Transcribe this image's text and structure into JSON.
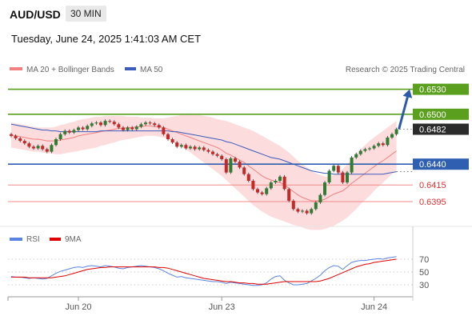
{
  "header": {
    "symbol": "AUD/USD",
    "timeframe": "30 MIN",
    "timestamp": "Tuesday, June 24, 2025 1:41:03 AM CET"
  },
  "legend": {
    "ma20": "MA 20 + Bollinger Bands",
    "ma50": "MA 50",
    "credit": "Research © 2025 Trading Central"
  },
  "rsi_legend": {
    "rsi": "RSI",
    "ma": "9MA"
  },
  "colors": {
    "candle_up": "#2e7d32",
    "candle_down": "#c62828",
    "resistance": "#5aa01e",
    "pivot": "#2e5fb0",
    "support": "#f08a8a",
    "bollinger_fill": "#fbd3d3",
    "ma20": "#f28080",
    "ma50": "#3b5bbd",
    "rsi": "#5b84e0",
    "rsi_ma": "#e00000",
    "arrow": "#2a5aa8"
  },
  "chart_data": [
    {
      "type": "candlestick",
      "title": "AUD/USD 30 MIN",
      "x_ticks": [
        "Jun 20",
        "Jun 23",
        "Jun 24"
      ],
      "ylim": [
        0.637,
        0.6545
      ],
      "levels": [
        {
          "value": 0.653,
          "label": "0.6530",
          "kind": "resistance"
        },
        {
          "value": 0.65,
          "label": "0.6500",
          "kind": "resistance"
        },
        {
          "value": 0.6482,
          "label": "0.6482",
          "kind": "last"
        },
        {
          "value": 0.644,
          "label": "0.6440",
          "kind": "pivot"
        },
        {
          "value": 0.6415,
          "label": "0.6415",
          "kind": "support"
        },
        {
          "value": 0.6395,
          "label": "0.6395",
          "kind": "support"
        }
      ],
      "close": [
        0.6474,
        0.6471,
        0.6468,
        0.6465,
        0.6461,
        0.6459,
        0.6462,
        0.6458,
        0.6455,
        0.6463,
        0.647,
        0.6476,
        0.648,
        0.6478,
        0.6481,
        0.6484,
        0.6482,
        0.6486,
        0.6489,
        0.649,
        0.6487,
        0.6492,
        0.6491,
        0.6488,
        0.6484,
        0.6481,
        0.6484,
        0.6482,
        0.6485,
        0.6488,
        0.649,
        0.6489,
        0.6487,
        0.6484,
        0.6476,
        0.647,
        0.6466,
        0.6461,
        0.6463,
        0.6459,
        0.6461,
        0.6458,
        0.646,
        0.6457,
        0.6455,
        0.6452,
        0.645,
        0.6446,
        0.643,
        0.6447,
        0.6443,
        0.6436,
        0.6428,
        0.642,
        0.641,
        0.6406,
        0.6404,
        0.6411,
        0.6418,
        0.642,
        0.6425,
        0.641,
        0.6396,
        0.6386,
        0.6383,
        0.6384,
        0.6381,
        0.6386,
        0.6394,
        0.6403,
        0.6418,
        0.6432,
        0.6438,
        0.643,
        0.6418,
        0.643,
        0.6448,
        0.6452,
        0.6456,
        0.6458,
        0.6459,
        0.6462,
        0.6465,
        0.6463,
        0.6472,
        0.6476,
        0.6482
      ],
      "ma20": [
        0.6475,
        0.6474,
        0.6473,
        0.6472,
        0.6471,
        0.647,
        0.647,
        0.6469,
        0.6468,
        0.6468,
        0.6468,
        0.6469,
        0.647,
        0.6471,
        0.6472,
        0.6474,
        0.6475,
        0.6476,
        0.6477,
        0.6478,
        0.6479,
        0.648,
        0.6481,
        0.6482,
        0.6483,
        0.6483,
        0.6484,
        0.6484,
        0.6485,
        0.6485,
        0.6486,
        0.6486,
        0.6485,
        0.6485,
        0.6484,
        0.6482,
        0.648,
        0.6478,
        0.6476,
        0.6474,
        0.6472,
        0.647,
        0.6468,
        0.6466,
        0.6464,
        0.6462,
        0.646,
        0.6457,
        0.6453,
        0.6451,
        0.6448,
        0.6445,
        0.6442,
        0.6438,
        0.6434,
        0.643,
        0.6426,
        0.6423,
        0.6421,
        0.6419,
        0.6418,
        0.6415,
        0.6411,
        0.6407,
        0.6403,
        0.64,
        0.6398,
        0.6396,
        0.6396,
        0.6396,
        0.6398,
        0.6401,
        0.6404,
        0.6406,
        0.6408,
        0.6412,
        0.6417,
        0.6421,
        0.6425,
        0.6429,
        0.6433,
        0.6437,
        0.6441,
        0.6444,
        0.6448,
        0.6452,
        0.6456
      ],
      "ma50": [
        0.6488,
        0.6487,
        0.6486,
        0.6485,
        0.6484,
        0.6483,
        0.6482,
        0.6481,
        0.6481,
        0.648,
        0.648,
        0.6479,
        0.6479,
        0.6479,
        0.6479,
        0.6479,
        0.6479,
        0.6479,
        0.6479,
        0.6479,
        0.648,
        0.648,
        0.648,
        0.648,
        0.648,
        0.648,
        0.648,
        0.648,
        0.648,
        0.648,
        0.648,
        0.648,
        0.648,
        0.648,
        0.648,
        0.648,
        0.6479,
        0.6479,
        0.6478,
        0.6477,
        0.6476,
        0.6475,
        0.6474,
        0.6473,
        0.6472,
        0.6471,
        0.647,
        0.6469,
        0.6467,
        0.6466,
        0.6464,
        0.6462,
        0.646,
        0.6458,
        0.6456,
        0.6454,
        0.6452,
        0.645,
        0.6448,
        0.6447,
        0.6446,
        0.6444,
        0.6442,
        0.644,
        0.6438,
        0.6436,
        0.6434,
        0.6432,
        0.6431,
        0.643,
        0.6429,
        0.6429,
        0.6428,
        0.6428,
        0.6428,
        0.6428,
        0.6428,
        0.6428,
        0.6428,
        0.6428,
        0.6428,
        0.6428,
        0.6428,
        0.6428,
        0.6429,
        0.643,
        0.6431
      ],
      "bb_upper": [
        0.649,
        0.6489,
        0.6488,
        0.6487,
        0.6486,
        0.6485,
        0.6484,
        0.6484,
        0.6484,
        0.6484,
        0.6485,
        0.6487,
        0.6488,
        0.649,
        0.6491,
        0.6493,
        0.6494,
        0.6495,
        0.6496,
        0.6497,
        0.6497,
        0.6498,
        0.6498,
        0.6498,
        0.6498,
        0.6498,
        0.6497,
        0.6497,
        0.6497,
        0.6496,
        0.6496,
        0.6496,
        0.6495,
        0.6495,
        0.6495,
        0.6496,
        0.6497,
        0.6498,
        0.6499,
        0.6499,
        0.6499,
        0.6499,
        0.6499,
        0.6498,
        0.6497,
        0.6496,
        0.6494,
        0.6493,
        0.6492,
        0.649,
        0.6488,
        0.6486,
        0.6484,
        0.6482,
        0.648,
        0.6477,
        0.6474,
        0.6471,
        0.6468,
        0.6465,
        0.6462,
        0.6458,
        0.6454,
        0.6449,
        0.6444,
        0.644,
        0.6436,
        0.6432,
        0.6429,
        0.6427,
        0.6425,
        0.6425,
        0.6427,
        0.643,
        0.6434,
        0.644,
        0.6446,
        0.6452,
        0.6458,
        0.6463,
        0.6468,
        0.6472,
        0.6476,
        0.648,
        0.6484,
        0.6488,
        0.6492
      ],
      "bb_lower": [
        0.646,
        0.6459,
        0.6458,
        0.6457,
        0.6456,
        0.6455,
        0.6455,
        0.6454,
        0.6453,
        0.6453,
        0.6452,
        0.6452,
        0.6453,
        0.6454,
        0.6455,
        0.6456,
        0.6457,
        0.6458,
        0.6459,
        0.646,
        0.6462,
        0.6463,
        0.6465,
        0.6466,
        0.6468,
        0.6469,
        0.647,
        0.6471,
        0.6472,
        0.6473,
        0.6474,
        0.6474,
        0.6474,
        0.6473,
        0.6472,
        0.647,
        0.6467,
        0.6464,
        0.6461,
        0.6458,
        0.6454,
        0.645,
        0.6446,
        0.6442,
        0.6438,
        0.6434,
        0.643,
        0.6426,
        0.6421,
        0.6416,
        0.6411,
        0.6406,
        0.6401,
        0.6396,
        0.6391,
        0.6387,
        0.6383,
        0.638,
        0.6377,
        0.6375,
        0.6373,
        0.6371,
        0.6369,
        0.6367,
        0.6366,
        0.6364,
        0.6362,
        0.6361,
        0.6361,
        0.6361,
        0.6362,
        0.6364,
        0.6366,
        0.6369,
        0.6372,
        0.6376,
        0.6381,
        0.6386,
        0.6392,
        0.6397,
        0.6402,
        0.6408,
        0.6413,
        0.6418,
        0.6423,
        0.6428,
        0.6433
      ]
    },
    {
      "type": "line",
      "title": "RSI",
      "yticks": [
        70,
        50,
        30
      ],
      "ylim": [
        15,
        85
      ],
      "series": [
        {
          "name": "RSI",
          "values": [
            43,
            42,
            42,
            41,
            40,
            41,
            40,
            39,
            40,
            44,
            48,
            51,
            53,
            55,
            57,
            58,
            57,
            59,
            60,
            59,
            58,
            60,
            59,
            58,
            56,
            55,
            57,
            58,
            59,
            60,
            59,
            58,
            57,
            55,
            52,
            48,
            45,
            42,
            43,
            41,
            40,
            39,
            38,
            37,
            36,
            35,
            35,
            34,
            32,
            34,
            33,
            32,
            31,
            30,
            29,
            29,
            30,
            33,
            39,
            43,
            44,
            37,
            33,
            30,
            30,
            31,
            32,
            36,
            40,
            45,
            52,
            57,
            60,
            59,
            54,
            60,
            65,
            67,
            68,
            68,
            69,
            70,
            71,
            70,
            72,
            73,
            74
          ]
        },
        {
          "name": "9MA",
          "values": [
            42,
            42,
            42,
            42,
            41,
            41,
            41,
            41,
            41,
            41,
            42,
            43,
            44,
            46,
            48,
            50,
            52,
            54,
            55,
            56,
            57,
            57,
            58,
            58,
            58,
            58,
            58,
            58,
            58,
            58,
            58,
            58,
            58,
            57,
            57,
            56,
            54,
            52,
            50,
            48,
            46,
            44,
            42,
            40,
            39,
            38,
            37,
            36,
            35,
            35,
            34,
            33,
            33,
            32,
            32,
            31,
            31,
            31,
            32,
            33,
            34,
            35,
            35,
            35,
            35,
            35,
            35,
            35,
            35,
            36,
            38,
            40,
            43,
            46,
            49,
            52,
            55,
            58,
            60,
            62,
            63,
            65,
            66,
            67,
            68,
            69,
            70
          ]
        }
      ]
    }
  ]
}
